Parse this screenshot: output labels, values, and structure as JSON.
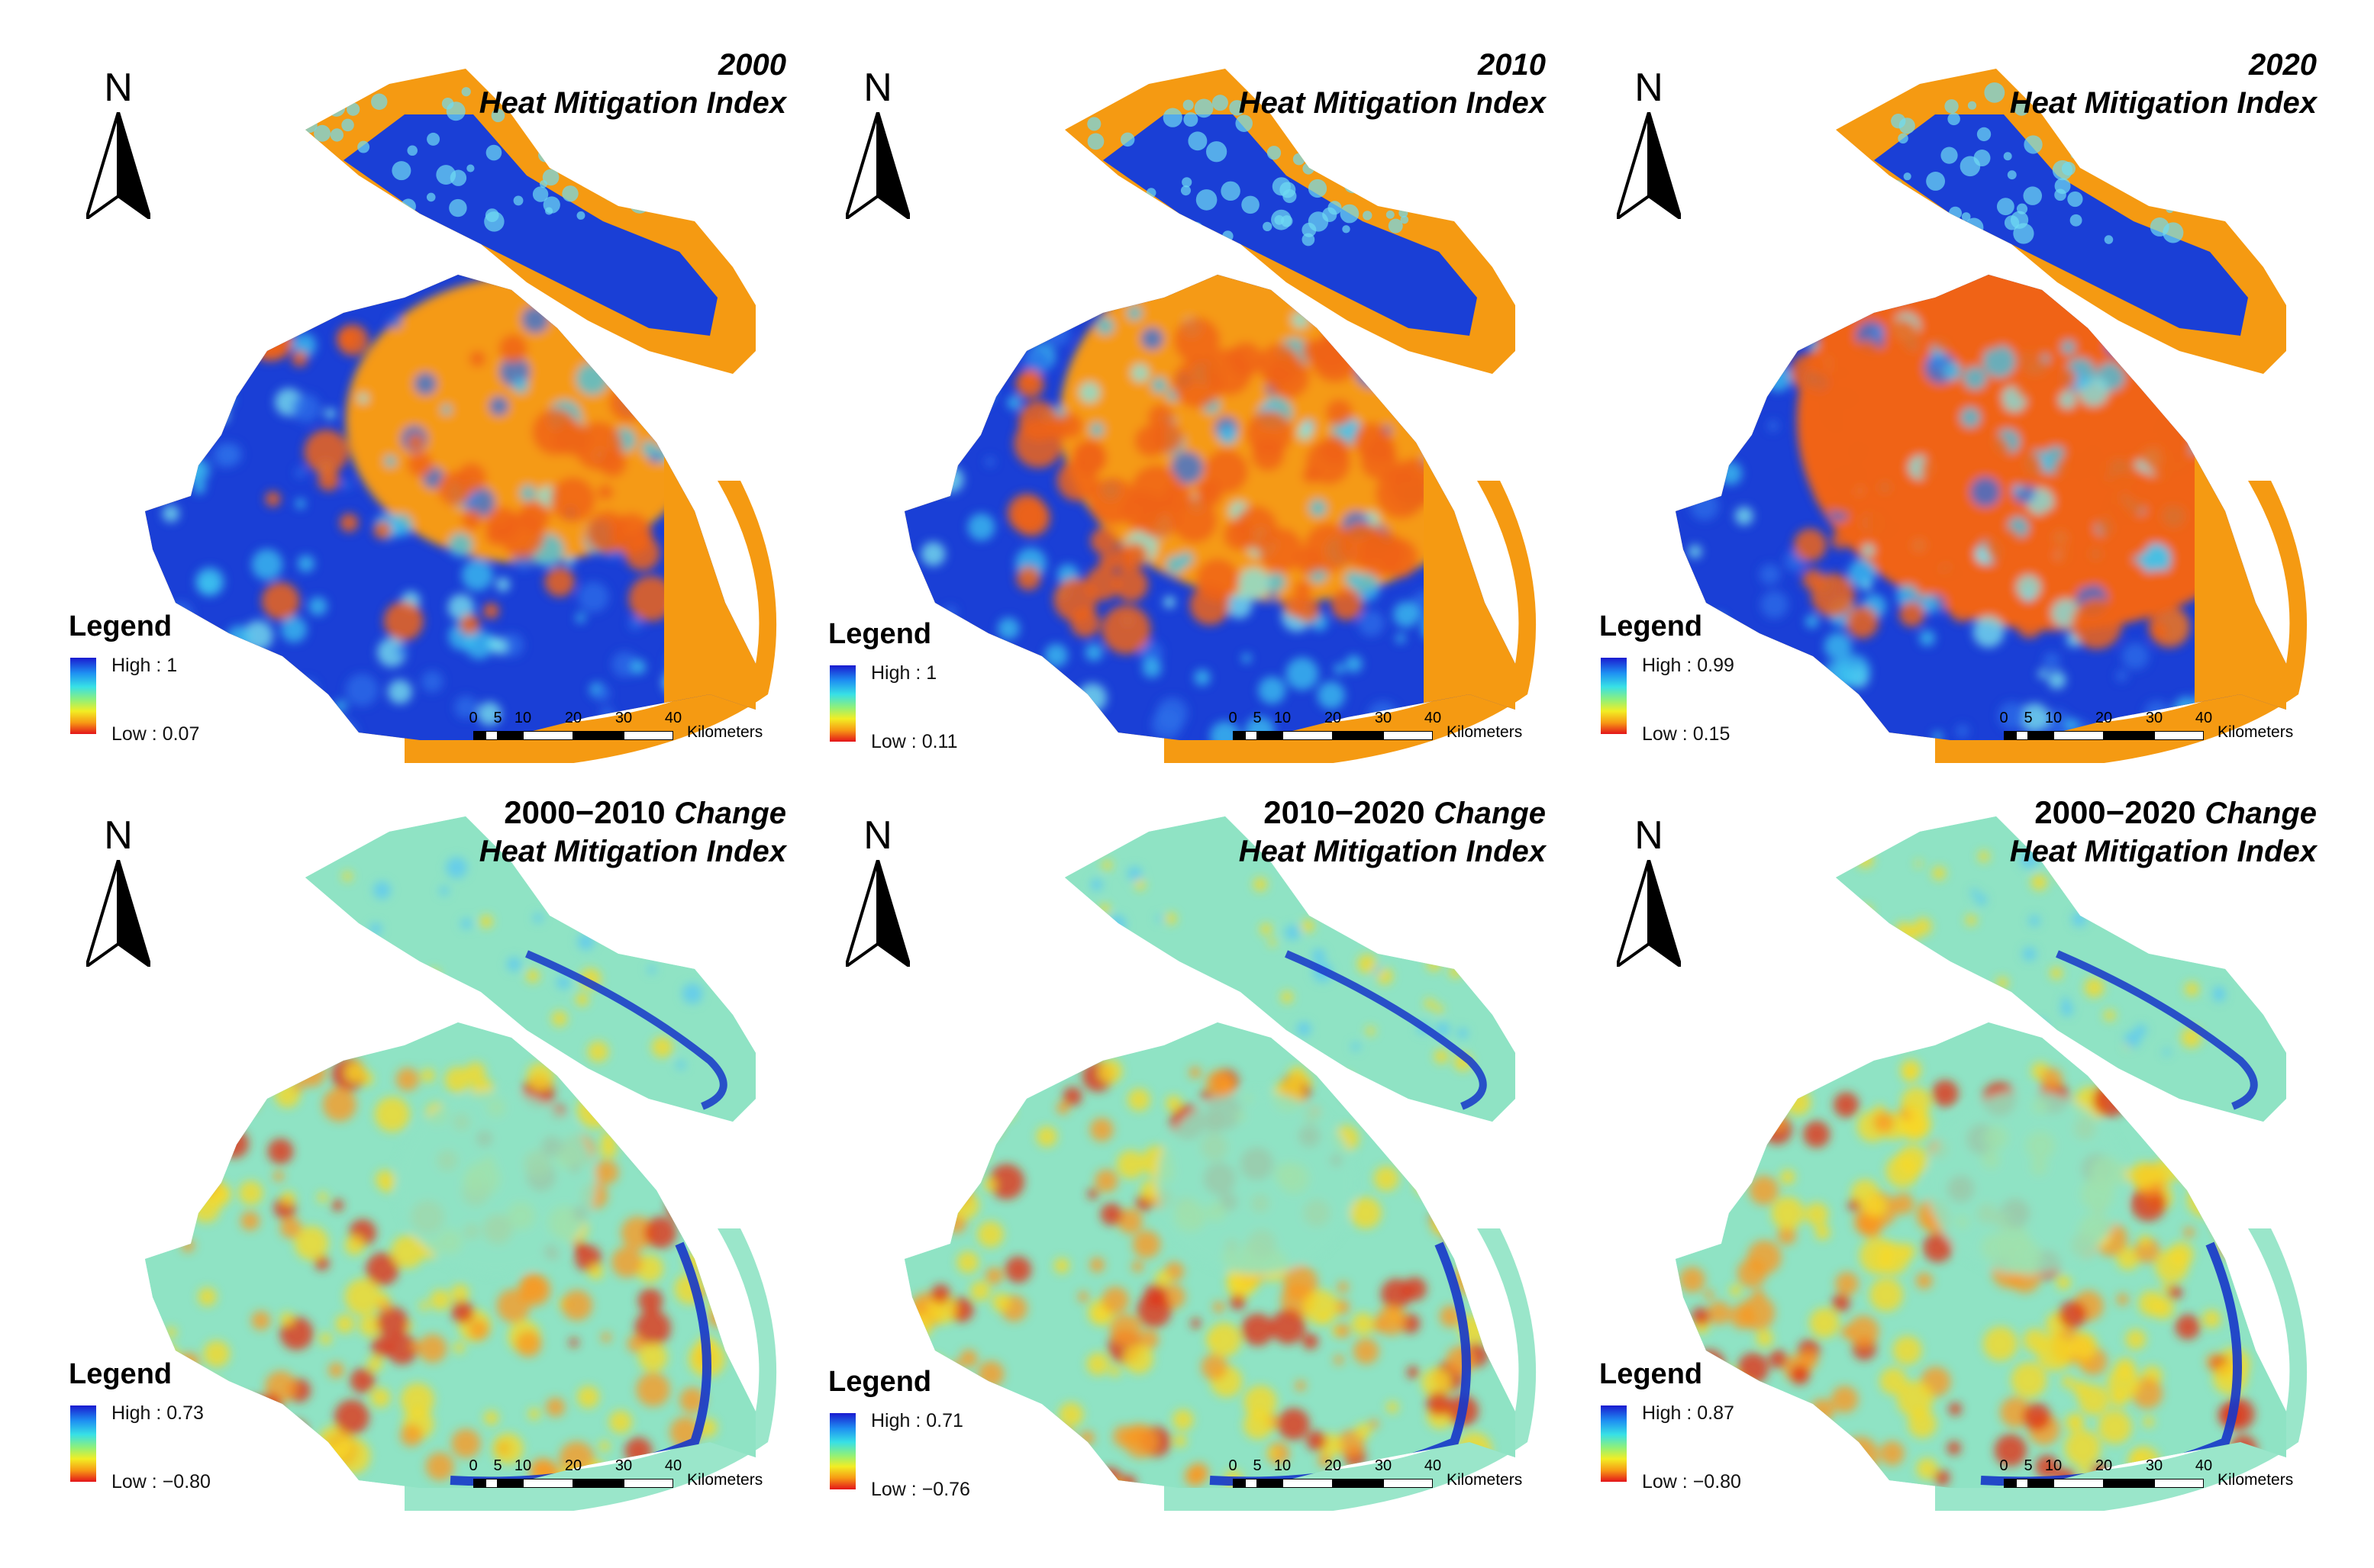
{
  "panels": [
    {
      "year": "2000",
      "name": "Heat Mitigation Index",
      "kind": "index",
      "legend_title": "Legend",
      "high": "High : 1",
      "low": "Low : 0.07"
    },
    {
      "year": "2010",
      "name": "Heat Mitigation Index",
      "kind": "index",
      "legend_title": "Legend",
      "high": "High : 1",
      "low": "Low : 0.11"
    },
    {
      "year": "2020",
      "name": "Heat Mitigation Index",
      "kind": "index",
      "legend_title": "Legend",
      "high": "High : 0.99",
      "low": "Low : 0.15"
    },
    {
      "year": "2000−2010",
      "change": "Change",
      "name": "Heat Mitigation Index",
      "kind": "change",
      "legend_title": "Legend",
      "high": "High : 0.73",
      "low": "Low : −0.80"
    },
    {
      "year": "2010−2020",
      "change": "Change",
      "name": "Heat Mitigation Index",
      "kind": "change",
      "legend_title": "Legend",
      "high": "High : 0.71",
      "low": "Low : −0.76"
    },
    {
      "year": "2000−2020",
      "change": "Change",
      "name": "Heat Mitigation Index",
      "kind": "change",
      "legend_title": "Legend",
      "high": "High : 0.87",
      "low": "Low :   −0.80"
    }
  ],
  "north_label": "N",
  "scale": {
    "ticks": [
      "0",
      "5",
      "10",
      "20",
      "30",
      "40"
    ],
    "unit": "Kilometers"
  },
  "colors": {
    "index_fill": "#1a3fd6",
    "index_base": "#f59a12",
    "urban": "#f06414",
    "change_base": "#8fe3c4",
    "change_hot": "#e03316",
    "change_warm": "#f6d826"
  }
}
